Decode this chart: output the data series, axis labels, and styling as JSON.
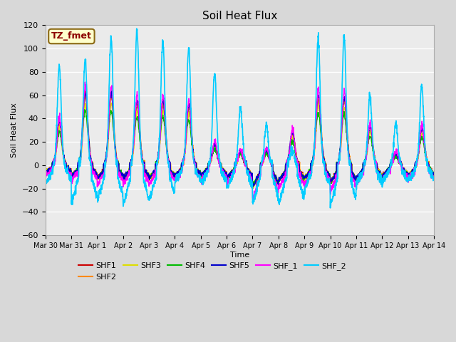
{
  "title": "Soil Heat Flux",
  "xlabel": "Time",
  "ylabel": "Soil Heat Flux",
  "ylim": [
    -60,
    120
  ],
  "tick_labels": [
    "Mar 30",
    "Mar 31",
    "Apr 1",
    "Apr 2",
    "Apr 3",
    "Apr 4",
    "Apr 5",
    "Apr 6",
    "Apr 7",
    "Apr 8",
    "Apr 9",
    "Apr 10",
    "Apr 11",
    "Apr 12",
    "Apr 13",
    "Apr 14"
  ],
  "series_order": [
    "SHF1",
    "SHF2",
    "SHF3",
    "SHF4",
    "SHF5",
    "SHF_1",
    "SHF_2"
  ],
  "series": {
    "SHF1": {
      "color": "#cc0000",
      "lw": 1.0
    },
    "SHF2": {
      "color": "#ff8800",
      "lw": 1.0
    },
    "SHF3": {
      "color": "#dddd00",
      "lw": 1.0
    },
    "SHF4": {
      "color": "#00bb00",
      "lw": 1.0
    },
    "SHF5": {
      "color": "#0000cc",
      "lw": 1.0
    },
    "SHF_1": {
      "color": "#ff00ff",
      "lw": 1.0
    },
    "SHF_2": {
      "color": "#00ccff",
      "lw": 1.2
    }
  },
  "annotation_text": "TZ_fmet",
  "annotation_color": "#8b0000",
  "annotation_bg": "#ffffcc",
  "annotation_border": "#8b6914",
  "plot_bg": "#ebebeb",
  "fig_bg": "#d8d8d8",
  "title_fontsize": 11,
  "legend_ncol_row1": 6,
  "legend_fontsize": 8
}
